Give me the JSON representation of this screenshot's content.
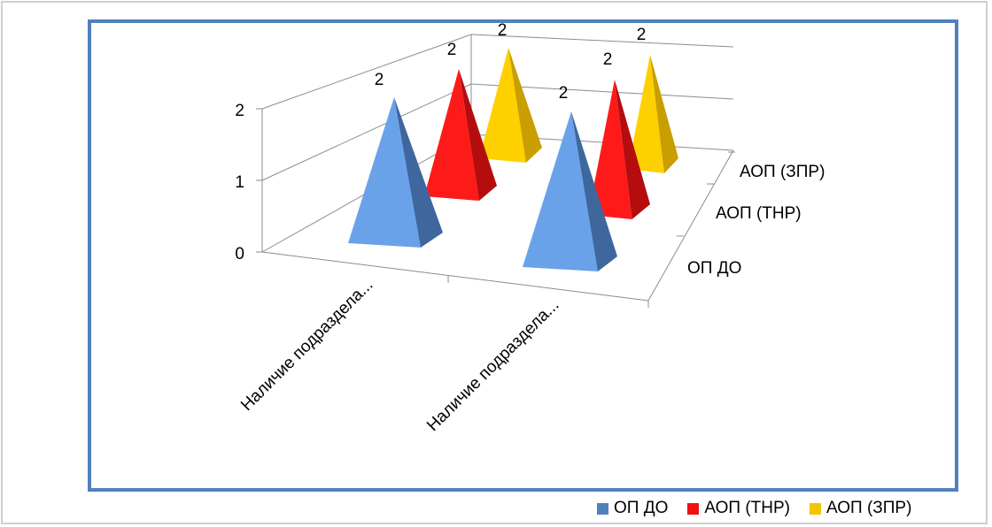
{
  "chart_data": {
    "type": "bar",
    "shape": "3d-pyramid",
    "categories": [
      "Наличие подраздела...",
      "Наличие подраздела..."
    ],
    "series": [
      {
        "name": "ОП ДО",
        "values": [
          2,
          2
        ],
        "color": "#5b8fd6"
      },
      {
        "name": "АОП (ТНР)",
        "values": [
          2,
          2
        ],
        "color": "#ee1111"
      },
      {
        "name": "АОП (ЗПР)",
        "values": [
          2,
          2
        ],
        "color": "#f5c400"
      }
    ],
    "depth_labels": [
      "ОП ДО",
      "АОП (ТНР)",
      "АОП (ЗПР)"
    ],
    "y_ticks": [
      "0",
      "1",
      "2"
    ],
    "ylim": [
      0,
      2
    ],
    "grid": true,
    "legend": "bottom-right"
  }
}
